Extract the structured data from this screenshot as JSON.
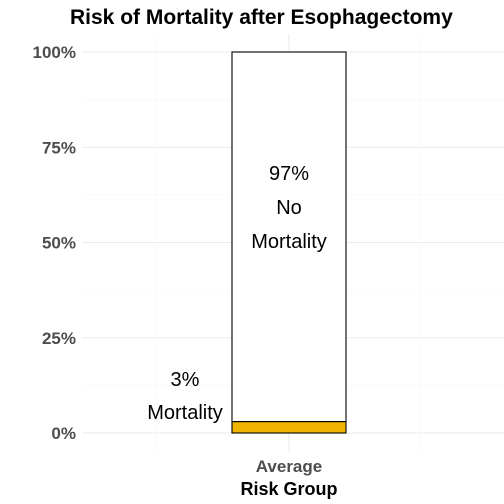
{
  "chart_data": {
    "type": "bar",
    "stacked": true,
    "title": "Risk of Mortality after Esophagectomy",
    "xlabel": "Risk Group",
    "ylabel": "",
    "categories": [
      "Average"
    ],
    "ylim": [
      0,
      100
    ],
    "yticks": [
      "0%",
      "25%",
      "50%",
      "75%",
      "100%"
    ],
    "y_tick_values": [
      0,
      25,
      50,
      75,
      100
    ],
    "series": [
      {
        "values": [
          3
        ],
        "color": "#f0b400"
      },
      {
        "values": [
          97
        ],
        "color": "#ffffff"
      }
    ],
    "annotations": [
      {
        "lines": [
          "3%",
          "Mortality"
        ]
      },
      {
        "lines": [
          "97%",
          "No",
          "Mortality"
        ]
      }
    ],
    "grid": true,
    "legend": "none"
  }
}
